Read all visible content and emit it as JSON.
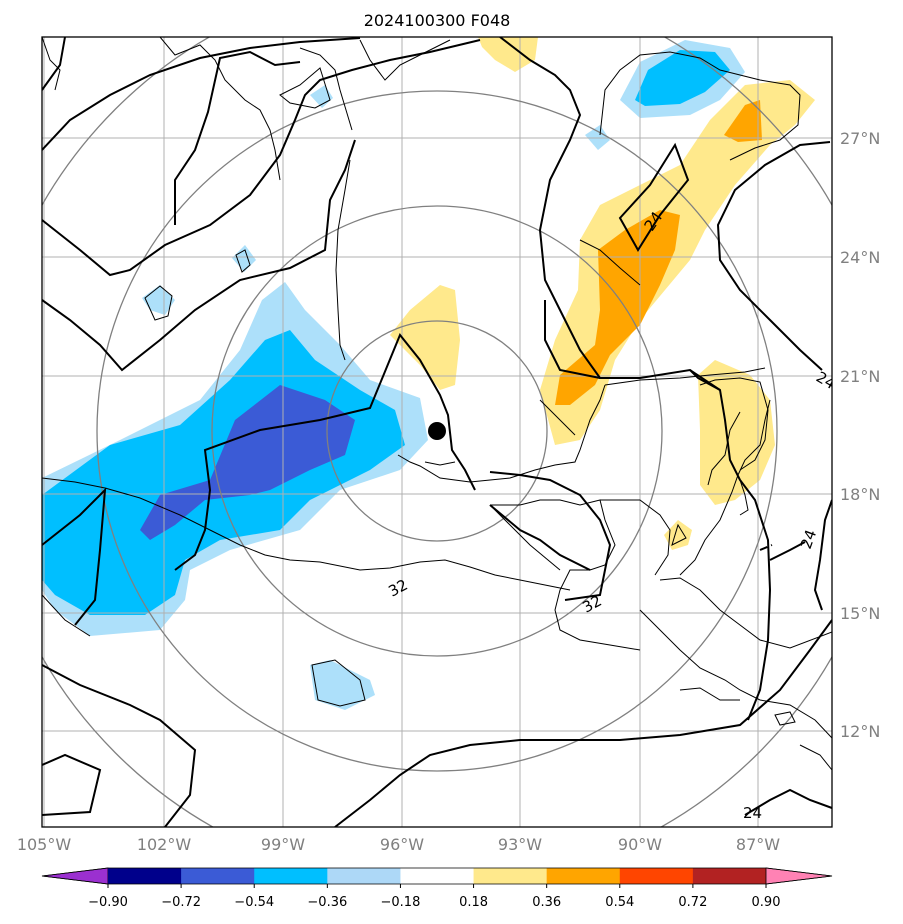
{
  "title": "2024100300 F048",
  "x_ticks": [
    "105°W",
    "102°W",
    "99°W",
    "96°W",
    "93°W",
    "90°W",
    "87°W"
  ],
  "y_ticks": [
    "27°N",
    "24°N",
    "21°N",
    "18°N",
    "15°N",
    "12°N"
  ],
  "extent": {
    "lon": [
      -105,
      -85.2
    ],
    "lat": [
      9.9,
      29.9
    ]
  },
  "grid_lon": [
    -105,
    -102,
    -99,
    -96,
    -93,
    -90,
    -87
  ],
  "grid_lat": [
    27,
    24,
    21,
    18,
    15,
    12
  ],
  "center_marker": {
    "lon": -95.0,
    "lat": 19.9
  },
  "contour_labels": [
    "32",
    "32",
    "24",
    "24",
    "24",
    "24"
  ],
  "colorbar": {
    "levels": [
      "−0.90",
      "−0.72",
      "−0.54",
      "−0.36",
      "−0.18",
      "0.18",
      "0.36",
      "0.54",
      "0.72",
      "0.90"
    ],
    "colors": [
      "#9b30d0",
      "#00008b",
      "#3b5bd6",
      "#00bfff",
      "#add8f7",
      "#ffffff",
      "#ffe98c",
      "#ffa500",
      "#ff4500",
      "#b22222",
      "#ff82b4"
    ]
  },
  "fill_colors": {
    "light_blue": "#ade0fa",
    "blue": "#00bfff",
    "dark_blue": "#3b5bd6",
    "light_yellow": "#ffe98c",
    "orange": "#ffa500"
  }
}
